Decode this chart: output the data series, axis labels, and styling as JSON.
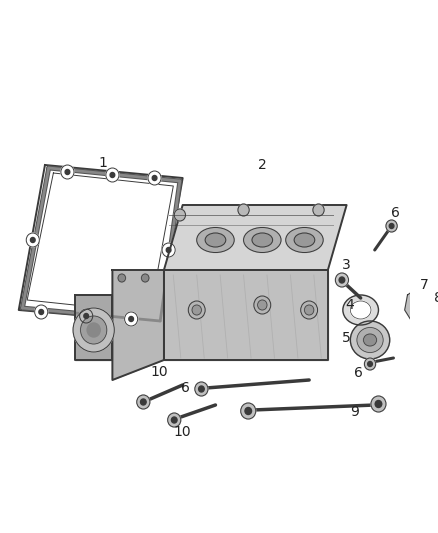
{
  "bg_color": "#ffffff",
  "line_color": "#3a3a3a",
  "gray1": "#c8c8c8",
  "gray2": "#b0b0b0",
  "gray3": "#909090",
  "gray4": "#d8d8d8",
  "gray5": "#e8e8e8",
  "figsize": [
    4.38,
    5.33
  ],
  "dpi": 100
}
